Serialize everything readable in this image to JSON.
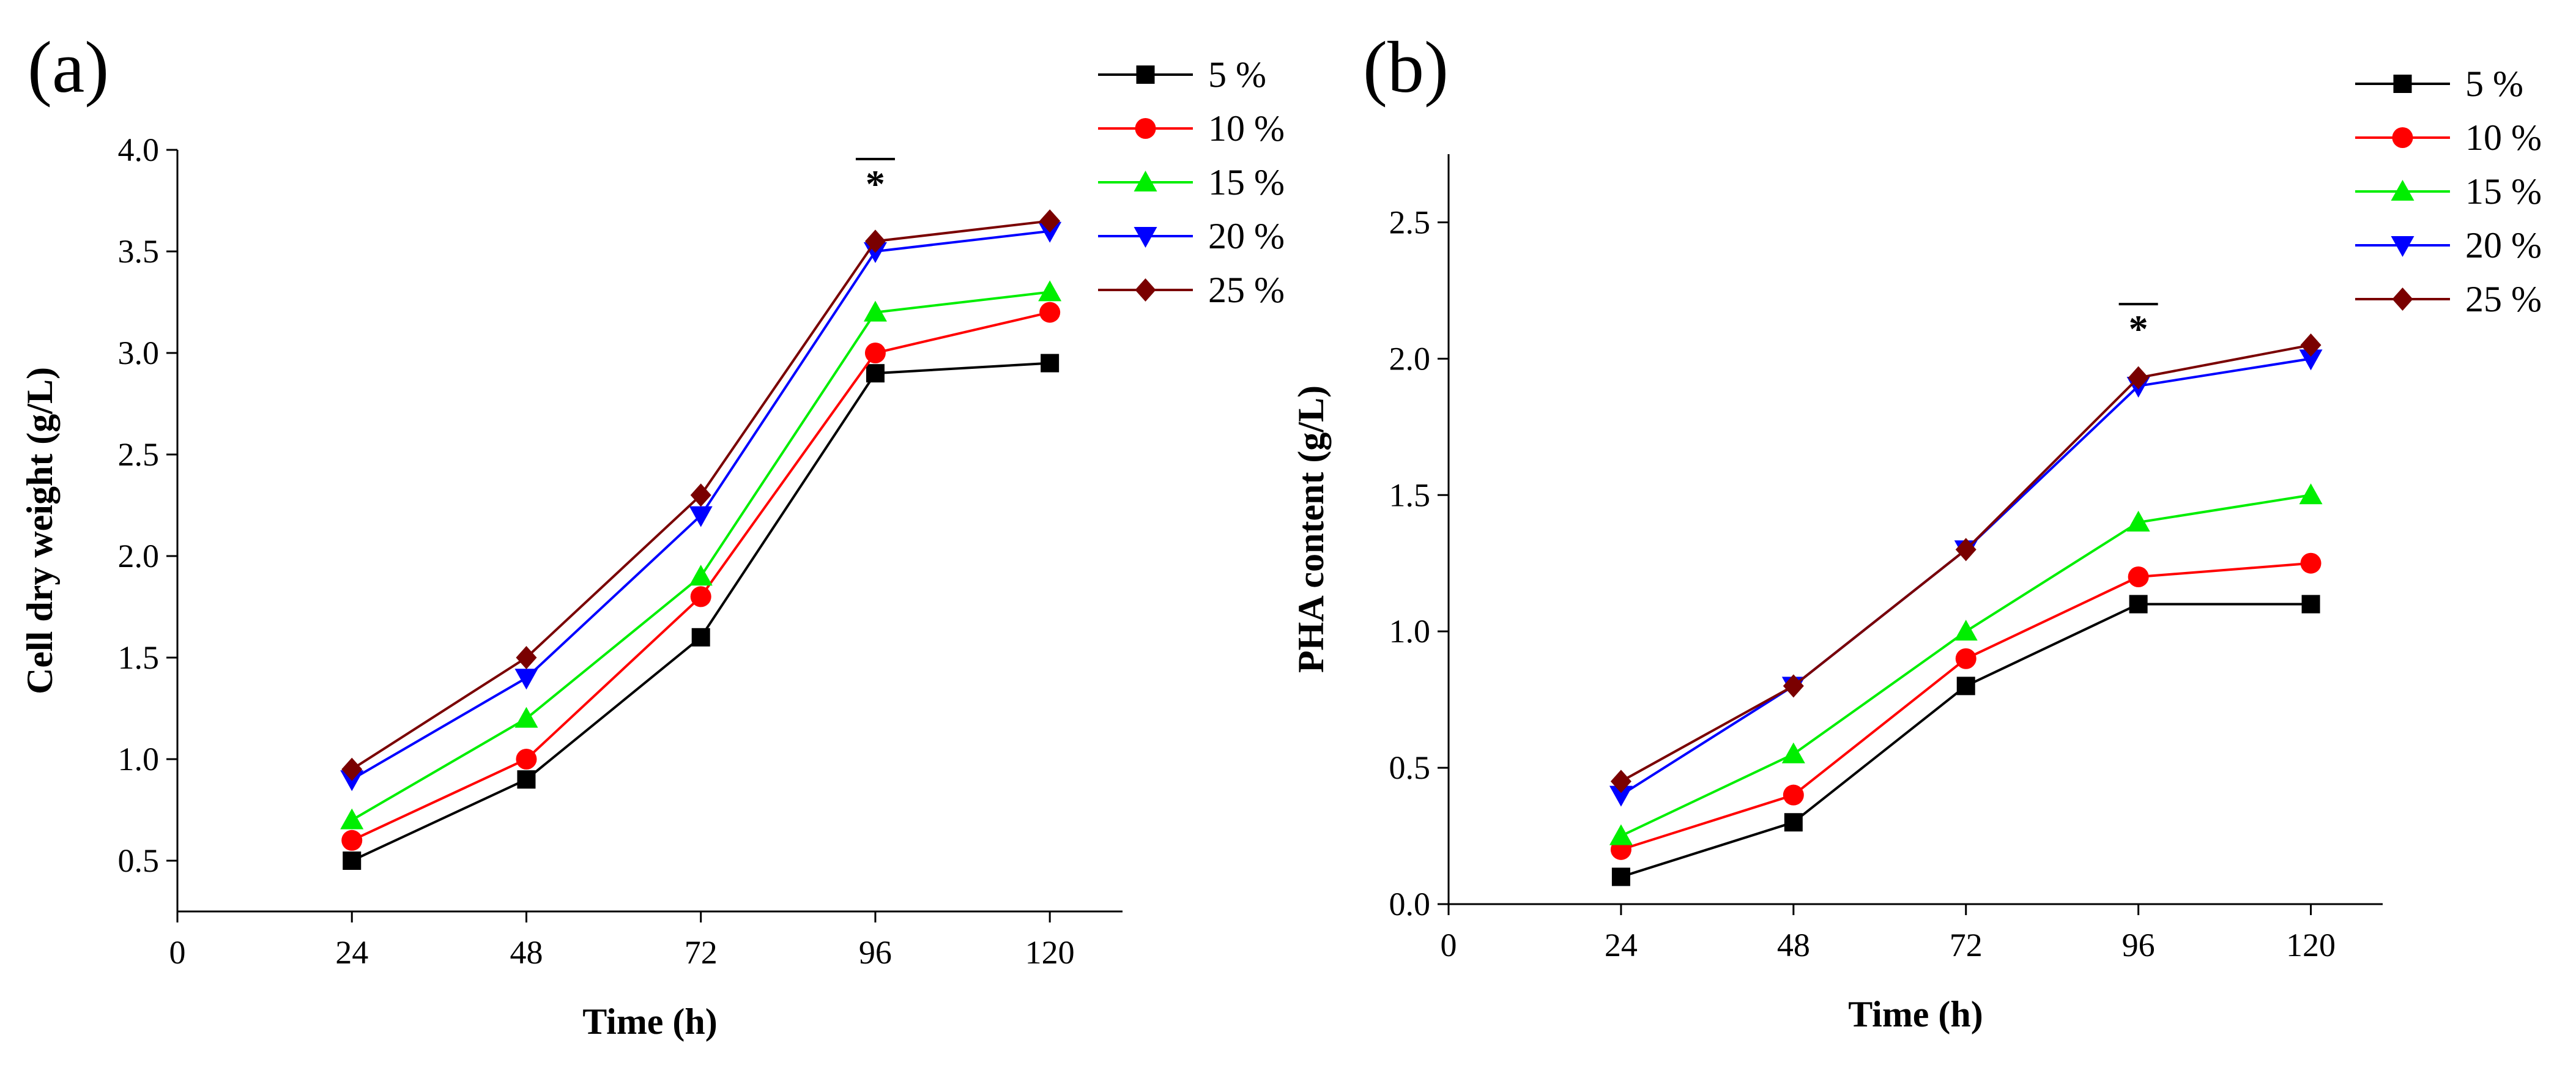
{
  "legend": [
    {
      "label": "5 %",
      "color": "#000000",
      "marker": "square"
    },
    {
      "label": "10 %",
      "color": "#ff0000",
      "marker": "circle"
    },
    {
      "label": "15 %",
      "color": "#00ee00",
      "marker": "triangle-up"
    },
    {
      "label": "20 %",
      "color": "#0000ff",
      "marker": "triangle-down"
    },
    {
      "label": "25 %",
      "color": "#7a0000",
      "marker": "diamond"
    }
  ],
  "chart_data": [
    {
      "panel_label": "(a)",
      "type": "line",
      "xlabel": "Time (h)",
      "ylabel": "Cell dry weight (g/L)",
      "xlim": [
        0,
        130
      ],
      "ylim": [
        0.25,
        4.0
      ],
      "xticks": [
        0,
        24,
        48,
        72,
        96,
        120
      ],
      "xtick_labels": [
        "0",
        "24",
        "48",
        "72",
        "96",
        "120"
      ],
      "yticks": [
        0.5,
        1.0,
        1.5,
        2.0,
        2.5,
        3.0,
        3.5,
        4.0
      ],
      "ytick_labels": [
        "0.5",
        "1.0",
        "1.5",
        "2.0",
        "2.5",
        "3.0",
        "3.5",
        "4.0"
      ],
      "x": [
        24,
        48,
        72,
        96,
        120
      ],
      "series": [
        {
          "name": "5 %",
          "values": [
            0.5,
            0.9,
            1.6,
            2.9,
            2.95
          ]
        },
        {
          "name": "10 %",
          "values": [
            0.6,
            1.0,
            1.8,
            3.0,
            3.2
          ]
        },
        {
          "name": "15 %",
          "values": [
            0.7,
            1.2,
            1.9,
            3.2,
            3.3
          ]
        },
        {
          "name": "20 %",
          "values": [
            0.9,
            1.4,
            2.2,
            3.5,
            3.6
          ]
        },
        {
          "name": "25 %",
          "values": [
            0.95,
            1.5,
            2.3,
            3.55,
            3.65
          ]
        }
      ],
      "annotations": [
        {
          "text": "*",
          "x": 96,
          "y": 3.78
        }
      ]
    },
    {
      "panel_label": "(b)",
      "type": "line",
      "xlabel": "Time (h)",
      "ylabel": "PHA content (g/L)",
      "xlim": [
        0,
        130
      ],
      "ylim": [
        0.0,
        2.75
      ],
      "xticks": [
        0,
        24,
        48,
        72,
        96,
        120
      ],
      "xtick_labels": [
        "0",
        "24",
        "48",
        "72",
        "96",
        "120"
      ],
      "yticks": [
        0.0,
        0.5,
        1.0,
        1.5,
        2.0,
        2.5
      ],
      "ytick_labels": [
        "0.0",
        "0.5",
        "1.0",
        "1.5",
        "2.0",
        "2.5"
      ],
      "x": [
        24,
        48,
        72,
        96,
        120
      ],
      "series": [
        {
          "name": "5 %",
          "values": [
            0.1,
            0.3,
            0.8,
            1.1,
            1.1
          ]
        },
        {
          "name": "10 %",
          "values": [
            0.2,
            0.4,
            0.9,
            1.2,
            1.25
          ]
        },
        {
          "name": "15 %",
          "values": [
            0.25,
            0.55,
            1.0,
            1.4,
            1.5
          ]
        },
        {
          "name": "20 %",
          "values": [
            0.4,
            0.8,
            1.3,
            1.9,
            2.0
          ]
        },
        {
          "name": "25 %",
          "values": [
            0.45,
            0.8,
            1.3,
            1.93,
            2.05
          ]
        }
      ],
      "annotations": [
        {
          "text": "*",
          "x": 96,
          "y": 2.07
        }
      ]
    }
  ]
}
